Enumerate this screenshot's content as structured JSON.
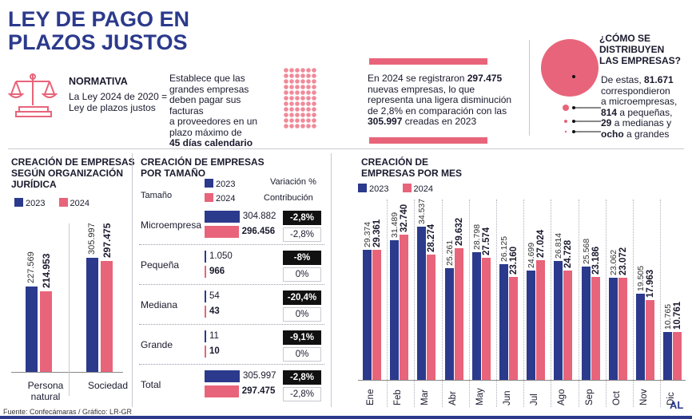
{
  "title": {
    "line1": "LEY DE PAGO EN",
    "line2": "PLAZOS JUSTOS"
  },
  "normativa": {
    "heading": "NORMATIVA",
    "text1": "La Ley 2024 de 2020 =",
    "text2": "Ley de plazos justos",
    "desc1": "Establece que las",
    "desc2": "grandes empresas",
    "desc3": "deben pagar sus facturas",
    "desc4": "a proveedores en un",
    "desc5": "plazo máximo de",
    "desc6": "45 días calendario",
    "icon": "scales-of-justice-icon"
  },
  "registro": {
    "l1a": "En 2024 se registraron ",
    "l1b": "297.475",
    "l2": "nuevas empresas, lo que",
    "l3": "representa una ligera disminución",
    "l4": "de 2,8% en comparación con las",
    "l5a": "305.997",
    "l5b": " creadas en 2023"
  },
  "distribucion": {
    "heading1": "¿CÓMO SE",
    "heading2": "DISTRIBUYEN",
    "heading3": "LAS EMPRESAS?",
    "l1a": "De estas, ",
    "l1b": "81.671",
    "l2": "correspondieron",
    "l3": "a microempresas,",
    "l4a": "814",
    "l4b": " a pequeñas,",
    "l5a": "29",
    "l5b": " a medianas y",
    "l6a": "ocho",
    "l6b": " a grandes"
  },
  "juridica": {
    "heading1": "CREACIÓN DE EMPRESAS",
    "heading2": "SEGÚN ORGANIZACIÓN",
    "heading3": "JURÍDICA",
    "legend2023": "2023",
    "legend2024": "2024"
  },
  "tamano": {
    "heading1": "CREACIÓN DE EMPRESAS",
    "heading2": "POR TAMAÑO",
    "col_tamano": "Tamaño",
    "col_variacion": "Variación %",
    "col_contribucion": "Contribución",
    "legend2023": "2023",
    "legend2024": "2024"
  },
  "mes": {
    "heading1": "CREACIÓN DE",
    "heading2": "EMPRESAS POR MES",
    "legend2023": "2023",
    "legend2024": "2024"
  },
  "footer": {
    "source": "Fuente: Confecámaras / Gráfico: LR-GR",
    "logo": "AL"
  },
  "colors": {
    "navy": "#2b3a8c",
    "pink": "#e8647a",
    "dots": "#f08a9a"
  },
  "chart_data": [
    {
      "type": "bar",
      "title": "CREACIÓN DE EMPRESAS SEGÚN ORGANIZACIÓN JURÍDICA",
      "categories": [
        "Persona natural",
        "Sociedad"
      ],
      "category_lines": [
        [
          "Persona",
          "natural"
        ],
        [
          "Sociedad"
        ]
      ],
      "series": [
        {
          "name": "2023",
          "values": [
            227569,
            305997
          ],
          "labels": [
            "227.569",
            "305.997"
          ],
          "color": "#2b3a8c"
        },
        {
          "name": "2024",
          "values": [
            214953,
            297475
          ],
          "labels": [
            "214.953",
            "297.475"
          ],
          "color": "#e8647a"
        }
      ],
      "ylim": [
        0,
        320000
      ]
    },
    {
      "type": "bar",
      "title": "CREACIÓN DE EMPRESAS POR TAMAÑO",
      "orientation": "horizontal",
      "categories": [
        "Microempresa",
        "Pequeña",
        "Mediana",
        "Grande",
        "Total"
      ],
      "series": [
        {
          "name": "2023",
          "values": [
            304882,
            1050,
            54,
            11,
            305997
          ],
          "labels": [
            "304.882",
            "1.050",
            "54",
            "11",
            "305.997"
          ],
          "color": "#2b3a8c"
        },
        {
          "name": "2024",
          "values": [
            296456,
            966,
            43,
            10,
            297475
          ],
          "labels": [
            "296.456",
            "966",
            "43",
            "10",
            "297.475"
          ],
          "color": "#e8647a"
        }
      ],
      "variacion": [
        "-2,8%",
        "-8%",
        "-20,4%",
        "-9,1%",
        "-2,8%"
      ],
      "contribucion": [
        "-2,8%",
        "0%",
        "0%",
        "0%",
        "-2,8%"
      ]
    },
    {
      "type": "bar",
      "title": "CREACIÓN DE EMPRESAS POR MES",
      "categories": [
        "Ene",
        "Feb",
        "Mar",
        "Abr",
        "May",
        "Jun",
        "Jul",
        "Ago",
        "Sep",
        "Oct",
        "Nov",
        "Dic"
      ],
      "series": [
        {
          "name": "2023",
          "values": [
            29374,
            31489,
            34537,
            25261,
            28798,
            26125,
            24699,
            26814,
            25568,
            23062,
            19505,
            10765
          ],
          "labels": [
            "29.374",
            "31.489",
            "34.537",
            "25.261",
            "28.798",
            "26.125",
            "24.699",
            "26.814",
            "25.568",
            "23.062",
            "19.505",
            "10.765"
          ],
          "color": "#2b3a8c"
        },
        {
          "name": "2024",
          "values": [
            29361,
            32740,
            28274,
            29632,
            27574,
            23160,
            27024,
            24728,
            23186,
            23072,
            17963,
            10761
          ],
          "labels": [
            "29.361",
            "32.740",
            "28.274",
            "29.632",
            "27.574",
            "23.160",
            "27.024",
            "24.728",
            "23.186",
            "23.072",
            "17.963",
            "10.761"
          ],
          "color": "#e8647a"
        }
      ],
      "ylim": [
        0,
        36000
      ]
    }
  ]
}
